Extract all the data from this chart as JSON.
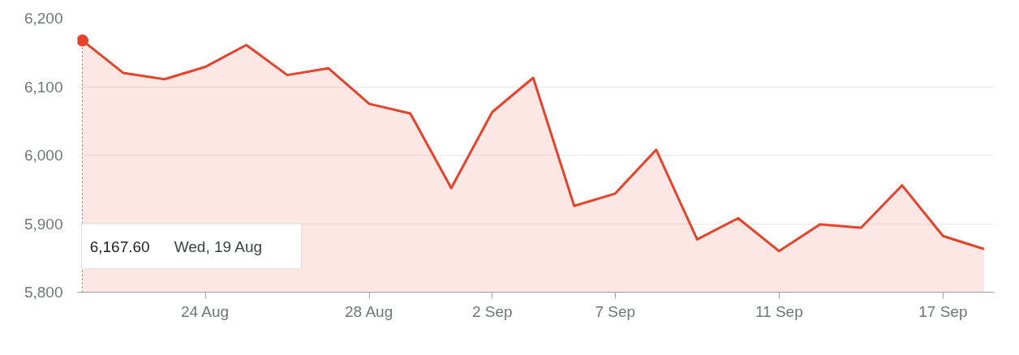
{
  "chart_data": {
    "type": "area",
    "categories": [
      null,
      null,
      null,
      "24 Aug",
      null,
      null,
      null,
      "28 Aug",
      null,
      null,
      "2 Sep",
      null,
      null,
      "7 Sep",
      null,
      null,
      null,
      "11 Sep",
      null,
      null,
      null,
      "17 Sep",
      null
    ],
    "series": [
      {
        "color": "#e5432b",
        "values": [
          6167.6,
          6120,
          6111,
          6129,
          6161,
          6117,
          6127,
          6075,
          6061,
          5952,
          6063,
          6113,
          5926,
          5944,
          6008,
          5877,
          5908,
          5860,
          5899,
          5894,
          5956,
          5882,
          5863
        ]
      }
    ],
    "ylim": [
      5800,
      6200
    ],
    "yticks": [
      {
        "value": 5800,
        "label": "5,800"
      },
      {
        "value": 5900,
        "label": "5,900"
      },
      {
        "value": 6000,
        "label": "6,000"
      },
      {
        "value": 6100,
        "label": "6,100"
      },
      {
        "value": 6200,
        "label": "6,200"
      }
    ],
    "grid": "y",
    "annotations": [
      "6,167.60",
      "Wed, 19 Aug"
    ]
  }
}
